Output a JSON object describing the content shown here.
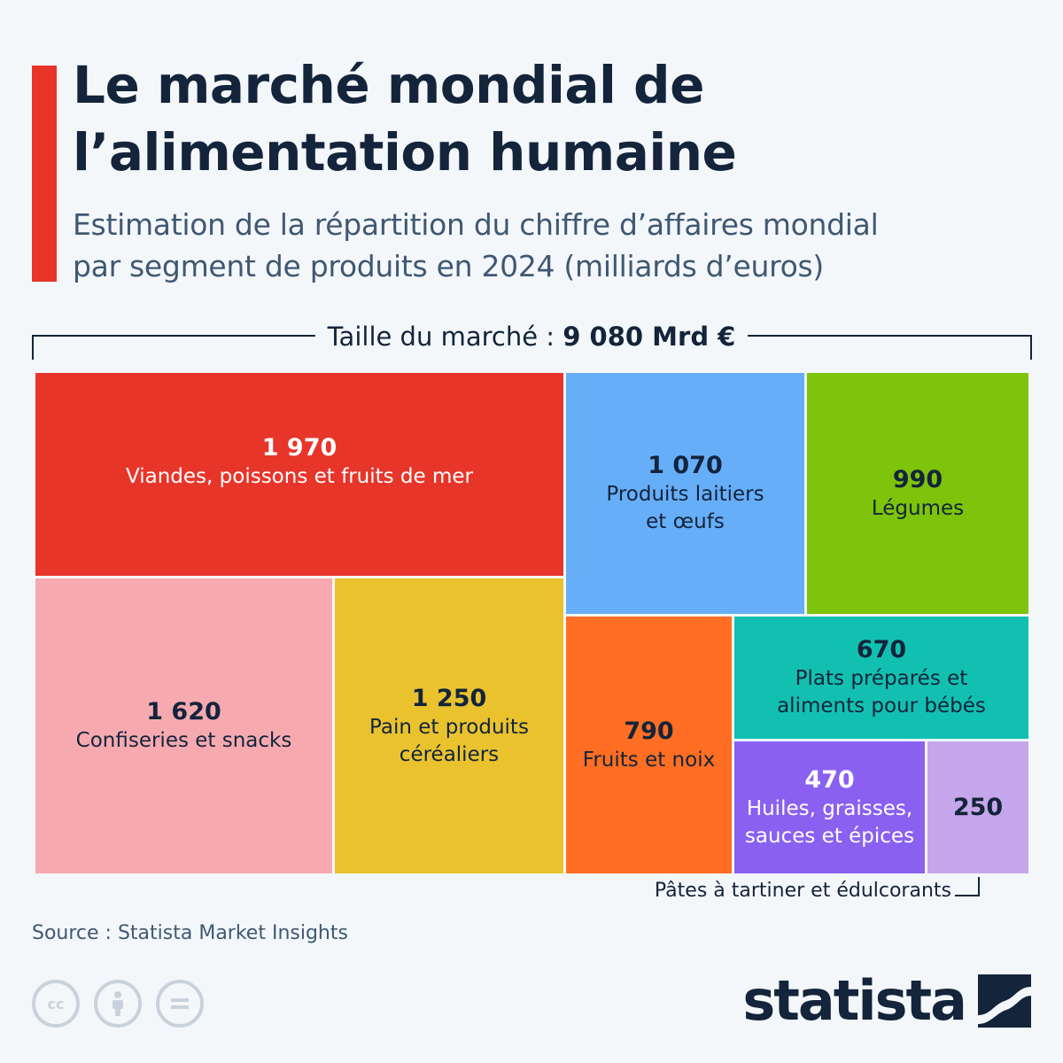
{
  "header": {
    "title": "Le marché mondial de\nl’alimentation humaine",
    "subtitle": "Estimation de la répartition du chiffre d’affaires mondial\npar segment de produits en 2024 (milliards d’euros)",
    "accent_color": "#e8352a"
  },
  "market": {
    "label": "Taille du marché :",
    "value": "9 080 Mrd €"
  },
  "chart_data": {
    "type": "treemap",
    "title": "Le marché mondial de l’alimentation humaine",
    "subtitle": "Estimation de la répartition du chiffre d’affaires mondial par segment de produits en 2024 (milliards d’euros)",
    "total_label": "9 080 Mrd €",
    "unit": "milliards d’euros",
    "segments": [
      {
        "label": "Viandes, poissons et fruits de mer",
        "value": 1970,
        "display": "1 970",
        "color": "#e8352a",
        "text": "light"
      },
      {
        "label": "Produits laitiers\net œufs",
        "value": 1070,
        "display": "1 070",
        "color": "#66aef8",
        "text": "dark"
      },
      {
        "label": "Légumes",
        "value": 990,
        "display": "990",
        "color": "#7dc40a",
        "text": "dark"
      },
      {
        "label": "Confiseries et snacks",
        "value": 1620,
        "display": "1 620",
        "color": "#f6aab0",
        "text": "dark"
      },
      {
        "label": "Pain et produits\ncéréaliers",
        "value": 1250,
        "display": "1 250",
        "color": "#e9c22e",
        "text": "dark"
      },
      {
        "label": "Fruits et noix",
        "value": 790,
        "display": "790",
        "color": "#ff6e22",
        "text": "dark"
      },
      {
        "label": "Plats préparés et\naliments pour bébés",
        "value": 670,
        "display": "670",
        "color": "#12c0b1",
        "text": "dark"
      },
      {
        "label": "Huiles, graisses,\nsauces et épices",
        "value": 470,
        "display": "470",
        "color": "#8a60f1",
        "text": "light"
      },
      {
        "label": "",
        "value": 250,
        "display": "250",
        "color": "#c6a6ea",
        "text": "dark"
      }
    ],
    "external_label": "Pâtes à tartiner et édulcorants"
  },
  "footer": {
    "source": "Source : Statista Market Insights",
    "brand": "statista",
    "license_icons": [
      "cc-icon",
      "attribution-icon",
      "no-derivatives-icon"
    ]
  }
}
